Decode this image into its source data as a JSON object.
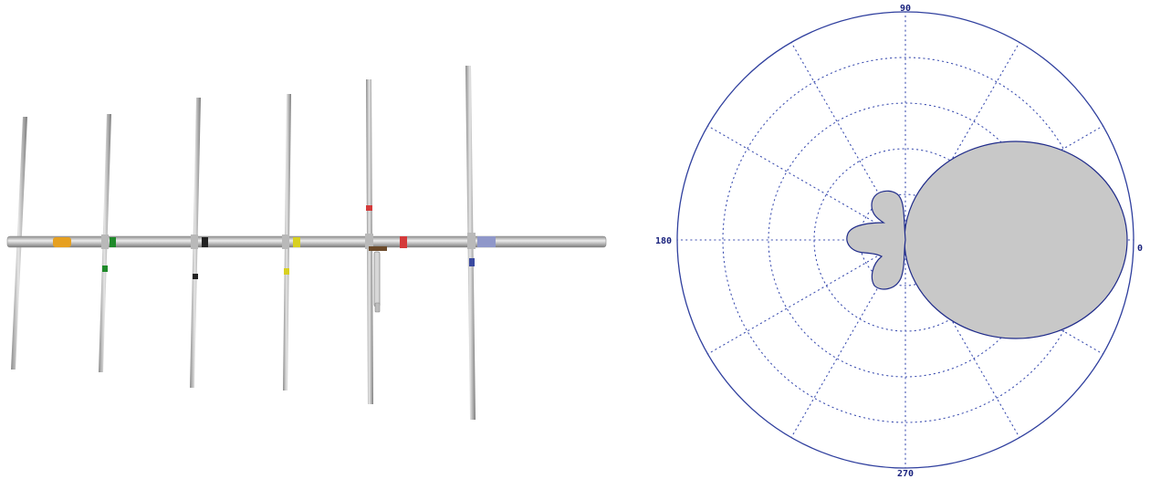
{
  "antenna": {
    "element_markers": [
      "#e6a020",
      "#1f8a2a",
      "#222222",
      "#d8d020",
      "#d43a3a",
      "#3a4aa0"
    ]
  },
  "polar_plot": {
    "angle_labels": {
      "top": "90",
      "left": "180",
      "right": "0",
      "bottom": "270"
    },
    "colors": {
      "outline": "#2f3f9e",
      "grid": "#3d4fb0",
      "lobe_fill": "#c8c8c8",
      "lobe_stroke": "#1f2b8a"
    }
  }
}
